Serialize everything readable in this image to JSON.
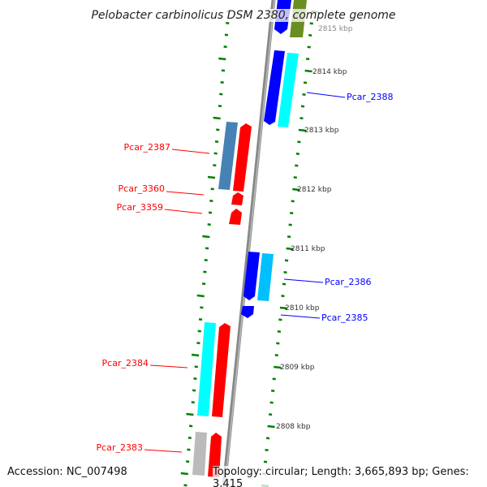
{
  "title": "Pelobacter carbinolicus DSM 2380, complete genome",
  "accession": "Accession: NC_007498",
  "topology": "Topology: circular; Length: 3,665,893 bp; Genes: 3,415",
  "ticks": [
    "2815 kbp",
    "2814 kbp",
    "2813 kbp",
    "2812 kbp",
    "2811 kbp",
    "2810 kbp",
    "2809 kbp",
    "2808 kbp"
  ],
  "genes": {
    "pcar_2388": "Pcar_2388",
    "pcar_2387": "Pcar_2387",
    "pcar_3360": "Pcar_3360",
    "pcar_3359": "Pcar_3359",
    "pcar_2386": "Pcar_2386",
    "pcar_2385": "Pcar_2385",
    "pcar_2384": "Pcar_2384",
    "pcar_2383": "Pcar_2383"
  },
  "colors": {
    "forward": "#0000ff",
    "reverse": "#ff0000",
    "cyan": "#00ffff",
    "steel": "#4682b4",
    "olive": "#6b8e23",
    "gray": "#bbbbbb",
    "tick": "#008000"
  }
}
